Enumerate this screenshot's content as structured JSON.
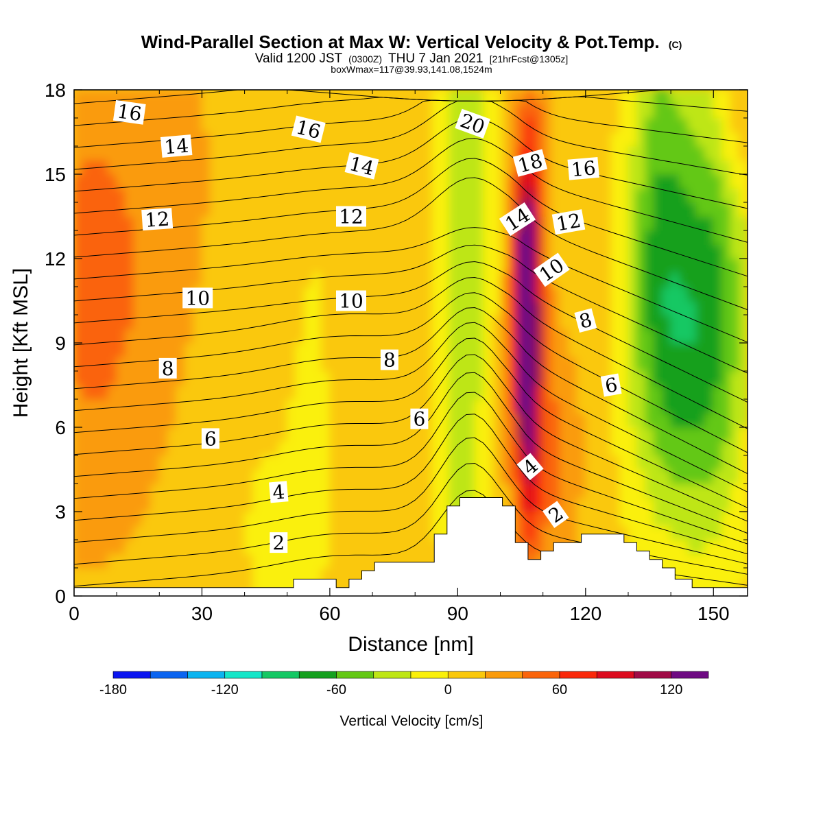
{
  "header": {
    "title": "Wind-Parallel Section at Max W: Vertical Velocity & Pot.Temp.",
    "copyright": "(C)",
    "valid_prefix": "Valid 1200 JST",
    "valid_utc": "(0300Z)",
    "valid_date": "THU 7 Jan 2021",
    "forecast": "[21hrFcst@1305z]",
    "box_info": "boxWmax=117@39.93,141.08,1524m"
  },
  "chart_data": {
    "type": "heatmap",
    "xlabel": "Distance [nm]",
    "ylabel": "Height [Kft MSL]",
    "xlim": [
      0,
      158
    ],
    "ylim": [
      0,
      18
    ],
    "x_ticks": [
      "0",
      "30",
      "60",
      "90",
      "120",
      "150"
    ],
    "y_ticks": [
      "0",
      "3",
      "6",
      "9",
      "12",
      "15",
      "18"
    ],
    "colorbar": {
      "label": "Vertical Velocity [cm/s]",
      "range": [
        -180,
        140
      ],
      "step": 20,
      "tick_labels": [
        "-180",
        "-120",
        "-60",
        "0",
        "60",
        "120"
      ],
      "colors": [
        "#0a14f0",
        "#0a64f0",
        "#0ab4f0",
        "#14e6c8",
        "#14c864",
        "#14a01e",
        "#64c814",
        "#bee614",
        "#faf00a",
        "#fac80a",
        "#fa9b0a",
        "#fa640a",
        "#fa280a",
        "#dc0a1e",
        "#a00a46",
        "#6e0a82"
      ]
    },
    "terrain": [
      {
        "x": 0,
        "h": 0.3
      },
      {
        "x": 51.5,
        "h": 0.3
      },
      {
        "x": 51.5,
        "h": 0.6
      },
      {
        "x": 61.5,
        "h": 0.6
      },
      {
        "x": 61.5,
        "h": 0.3
      },
      {
        "x": 64.5,
        "h": 0.3
      },
      {
        "x": 64.5,
        "h": 0.6
      },
      {
        "x": 67.5,
        "h": 0.6
      },
      {
        "x": 67.5,
        "h": 0.9
      },
      {
        "x": 70.5,
        "h": 0.9
      },
      {
        "x": 70.5,
        "h": 1.2
      },
      {
        "x": 84.5,
        "h": 1.2
      },
      {
        "x": 84.5,
        "h": 2.2
      },
      {
        "x": 87.5,
        "h": 2.2
      },
      {
        "x": 87.5,
        "h": 3.2
      },
      {
        "x": 90.5,
        "h": 3.2
      },
      {
        "x": 90.5,
        "h": 3.5
      },
      {
        "x": 100.5,
        "h": 3.5
      },
      {
        "x": 100.5,
        "h": 3.2
      },
      {
        "x": 103.5,
        "h": 3.2
      },
      {
        "x": 103.5,
        "h": 1.9
      },
      {
        "x": 106.5,
        "h": 1.9
      },
      {
        "x": 106.5,
        "h": 1.3
      },
      {
        "x": 109.5,
        "h": 1.3
      },
      {
        "x": 109.5,
        "h": 1.6
      },
      {
        "x": 112.5,
        "h": 1.6
      },
      {
        "x": 112.5,
        "h": 1.9
      },
      {
        "x": 119,
        "h": 1.9
      },
      {
        "x": 119,
        "h": 2.2
      },
      {
        "x": 129,
        "h": 2.2
      },
      {
        "x": 129,
        "h": 1.9
      },
      {
        "x": 132,
        "h": 1.9
      },
      {
        "x": 132,
        "h": 1.6
      },
      {
        "x": 135,
        "h": 1.6
      },
      {
        "x": 135,
        "h": 1.3
      },
      {
        "x": 138,
        "h": 1.3
      },
      {
        "x": 138,
        "h": 1.0
      },
      {
        "x": 141,
        "h": 1.0
      },
      {
        "x": 141,
        "h": 0.6
      },
      {
        "x": 145,
        "h": 0.6
      },
      {
        "x": 145,
        "h": 0.3
      },
      {
        "x": 158,
        "h": 0.3
      }
    ],
    "contour_labels": [
      {
        "text": "16",
        "x": 13,
        "y": 17.2,
        "angle": 8
      },
      {
        "text": "14",
        "x": 24,
        "y": 16.0,
        "angle": -5
      },
      {
        "text": "12",
        "x": 19.5,
        "y": 13.4,
        "angle": -4
      },
      {
        "text": "10",
        "x": 29,
        "y": 10.6,
        "angle": 0
      },
      {
        "text": "8",
        "x": 22,
        "y": 8.1,
        "angle": 0
      },
      {
        "text": "6",
        "x": 32,
        "y": 5.6,
        "angle": 0
      },
      {
        "text": "4",
        "x": 48,
        "y": 3.7,
        "angle": -5
      },
      {
        "text": "2",
        "x": 48,
        "y": 1.9,
        "angle": 0
      },
      {
        "text": "16",
        "x": 55,
        "y": 16.6,
        "angle": 14
      },
      {
        "text": "14",
        "x": 67.5,
        "y": 15.3,
        "angle": 14
      },
      {
        "text": "12",
        "x": 65,
        "y": 13.5,
        "angle": 0
      },
      {
        "text": "10",
        "x": 65,
        "y": 10.5,
        "angle": 0
      },
      {
        "text": "8",
        "x": 74,
        "y": 8.4,
        "angle": 0
      },
      {
        "text": "6",
        "x": 81,
        "y": 6.3,
        "angle": 0
      },
      {
        "text": "20",
        "x": 93.5,
        "y": 16.8,
        "angle": 20
      },
      {
        "text": "18",
        "x": 107,
        "y": 15.4,
        "angle": -15
      },
      {
        "text": "16",
        "x": 119.5,
        "y": 15.2,
        "angle": -5
      },
      {
        "text": "14",
        "x": 104,
        "y": 13.4,
        "angle": -33
      },
      {
        "text": "12",
        "x": 116,
        "y": 13.3,
        "angle": -10
      },
      {
        "text": "10",
        "x": 112,
        "y": 11.6,
        "angle": -35
      },
      {
        "text": "8",
        "x": 120,
        "y": 9.8,
        "angle": -15
      },
      {
        "text": "6",
        "x": 126,
        "y": 7.5,
        "angle": -10
      },
      {
        "text": "4",
        "x": 107,
        "y": 4.6,
        "angle": -40
      },
      {
        "text": "2",
        "x": 113,
        "y": 2.9,
        "angle": -35
      }
    ]
  }
}
